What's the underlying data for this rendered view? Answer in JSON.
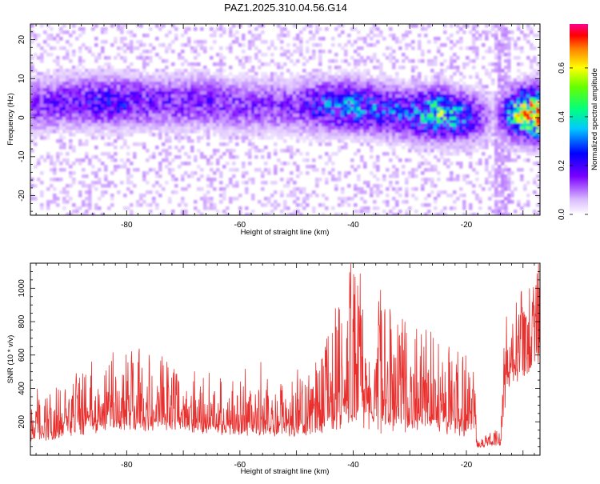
{
  "title": "PAZ1.2025.310.04.56.G14",
  "chart_data": [
    {
      "type": "heatmap",
      "xlabel": "Height of straight line (km)",
      "ylabel": "Frequency (Hz)",
      "xlim": [
        -97,
        -7
      ],
      "ylim": [
        -25,
        24
      ],
      "xticks": [
        -80,
        -60,
        -40,
        -20
      ],
      "yticks": [
        -20,
        -10,
        0,
        10,
        20
      ],
      "colorbar": {
        "label": "Normalized spectral amplitude",
        "range": [
          0,
          0.78
        ],
        "ticks": [
          0.0,
          0.2,
          0.4,
          0.6
        ],
        "tick_labels": [
          "0.0",
          "0.2",
          "0.4",
          "0.6"
        ]
      },
      "band": {
        "x": [
          -97,
          -90,
          -85,
          -80,
          -75,
          -70,
          -65,
          -60,
          -55,
          -50,
          -45,
          -40,
          -35,
          -30,
          -25,
          -20,
          -15,
          -12,
          -10,
          -7
        ],
        "center": [
          3,
          4,
          4,
          4,
          4,
          4,
          4,
          3,
          3,
          3,
          3,
          3,
          2,
          1,
          1,
          0,
          0,
          1,
          1,
          1
        ],
        "peak": [
          0.18,
          0.22,
          0.25,
          0.24,
          0.2,
          0.2,
          0.2,
          0.18,
          0.18,
          0.18,
          0.3,
          0.34,
          0.3,
          0.3,
          0.46,
          0.32,
          0.05,
          0.4,
          0.6,
          0.78
        ]
      }
    },
    {
      "type": "line",
      "xlabel": "Height of straight line (km)",
      "ylabel": "SNR (10 * v/v)",
      "xlim": [
        -97,
        -7
      ],
      "ylim": [
        0,
        1150
      ],
      "xticks": [
        -80,
        -60,
        -40,
        -20
      ],
      "yticks": [
        200,
        400,
        600,
        800,
        1000
      ],
      "color": "#e8302e",
      "envelope": {
        "x": [
          -97,
          -93,
          -90,
          -85,
          -80,
          -75,
          -70,
          -65,
          -60,
          -55,
          -50,
          -47,
          -45,
          -42,
          -40,
          -38,
          -35,
          -32,
          -30,
          -27,
          -25,
          -22,
          -19,
          -18,
          -16,
          -14,
          -13,
          -12,
          -10,
          -8,
          -7
        ],
        "base": [
          100,
          120,
          150,
          180,
          200,
          190,
          180,
          170,
          150,
          150,
          140,
          150,
          200,
          250,
          280,
          240,
          230,
          220,
          210,
          220,
          200,
          180,
          170,
          50,
          60,
          70,
          350,
          500,
          500,
          600,
          620
        ],
        "amp": [
          110,
          150,
          170,
          220,
          260,
          240,
          200,
          180,
          170,
          160,
          160,
          220,
          300,
          380,
          520,
          440,
          420,
          350,
          300,
          320,
          280,
          260,
          250,
          40,
          40,
          60,
          330,
          250,
          280,
          380,
          380
        ]
      }
    }
  ]
}
